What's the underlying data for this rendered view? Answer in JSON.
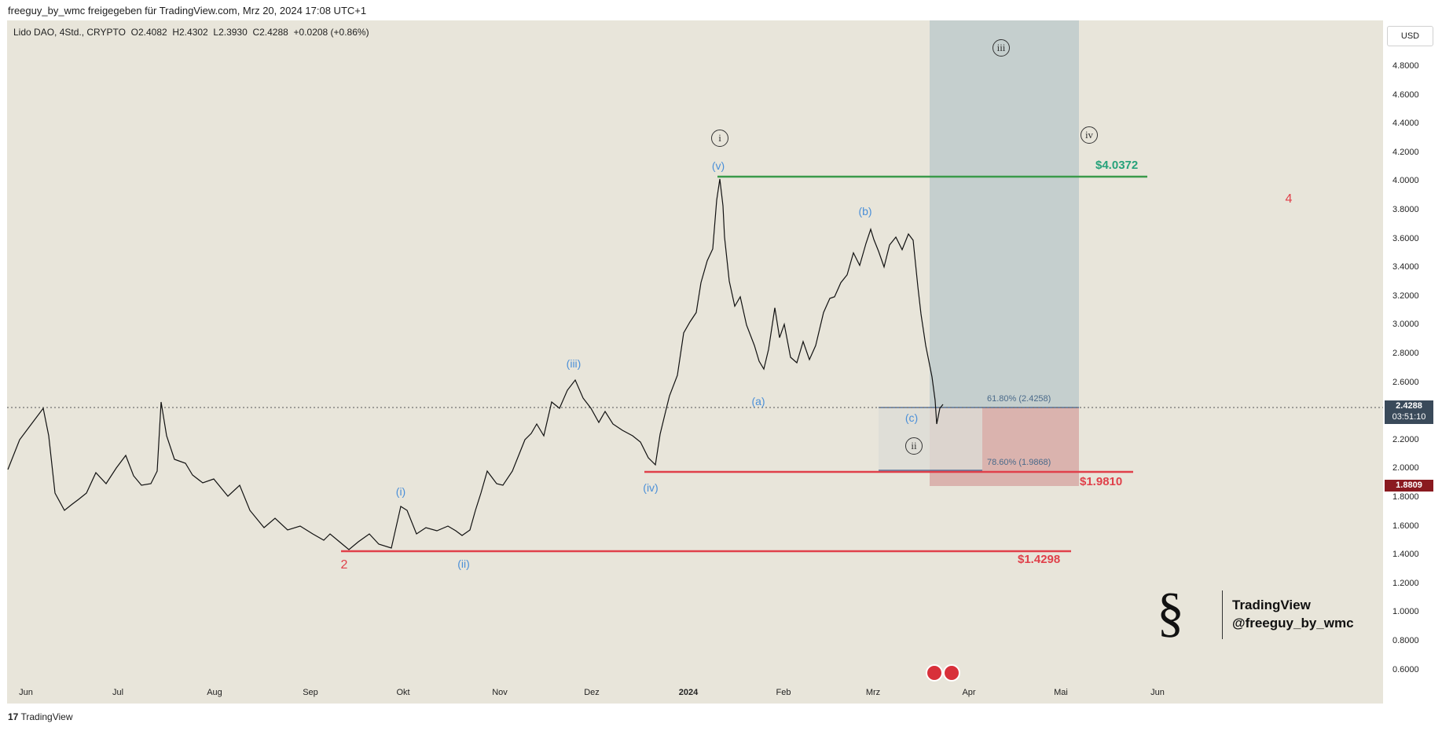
{
  "header": {
    "published_text": "freeguy_by_wmc freigegeben für TradingView.com, Mrz 20, 2024 17:08 UTC+1"
  },
  "symbol": {
    "name": "Lido DAO, 4Std., CRYPTO",
    "open": "O2.4082",
    "high": "H2.4302",
    "low": "L2.3930",
    "close": "C2.4288",
    "change": "+0.0208 (+0.86%)"
  },
  "currency_button": "USD",
  "price_axis": {
    "ticks": [
      "4.8000",
      "4.6000",
      "4.4000",
      "4.2000",
      "4.0000",
      "3.8000",
      "3.6000",
      "3.4000",
      "3.2000",
      "3.0000",
      "2.8000",
      "2.6000",
      "2.4000",
      "2.2000",
      "2.0000",
      "1.8000",
      "1.6000",
      "1.4000",
      "1.2000",
      "1.0000",
      "0.8000",
      "0.6000"
    ],
    "current_price": "2.4288",
    "countdown": "03:51:10",
    "stop_price": "1.8809"
  },
  "time_axis": {
    "labels": [
      {
        "text": "Jun",
        "bold": false
      },
      {
        "text": "Jul",
        "bold": false
      },
      {
        "text": "Aug",
        "bold": false
      },
      {
        "text": "Sep",
        "bold": false
      },
      {
        "text": "Okt",
        "bold": false
      },
      {
        "text": "Nov",
        "bold": false
      },
      {
        "text": "Dez",
        "bold": false
      },
      {
        "text": "2024",
        "bold": true
      },
      {
        "text": "Feb",
        "bold": false
      },
      {
        "text": "Mrz",
        "bold": false
      },
      {
        "text": "Apr",
        "bold": false
      },
      {
        "text": "Mai",
        "bold": false
      },
      {
        "text": "Jun",
        "bold": false
      }
    ]
  },
  "levels": {
    "top": "$4.0372",
    "mid": "$1.9810",
    "low": "$1.4298"
  },
  "fib": {
    "fib618": "61.80% (2.4258)",
    "fib786": "78.60% (1.9868)"
  },
  "waves": {
    "blue_v": "(v)",
    "blue_iii": "(iii)",
    "blue_i": "(i)",
    "blue_ii": "(ii)",
    "blue_iv": "(iv)",
    "blue_a": "(a)",
    "blue_b": "(b)",
    "blue_c": "(c)",
    "red_2": "2",
    "red_4": "4",
    "circ_i": "i",
    "circ_ii": "ii",
    "circ_iii": "iii",
    "circ_iv": "iv"
  },
  "watermark": {
    "line1": "TradingView",
    "line2": "@freeguy_by_wmc"
  },
  "footer": "TradingView",
  "colors": {
    "background": "#e8e5da",
    "candles": "#111111",
    "green_level": "#3a9a4a",
    "red_level": "#e0404a",
    "target_zone": "#b9c7c9",
    "stop_zone": "#d9a9a5",
    "wave_blue": "#4a8fd8"
  }
}
